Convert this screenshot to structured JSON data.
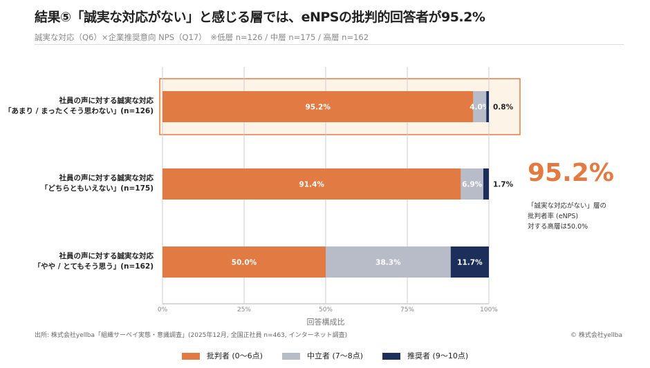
{
  "header": {
    "title": "結果⑤「誠実な対応がない」と感じる層では、eNPSの批判的回答者が95.2%",
    "subtitle": "誠実な対応（Q6）×企業推奨意向 NPS（Q17）　※低層 n=126 / 中層 n=175 / 高層 n=162"
  },
  "chart_data": {
    "type": "bar",
    "orientation": "horizontal",
    "stacked": true,
    "categories": [
      [
        "社員の声に対する誠実な対応",
        "「あまり / まったくそう思わない」(n=126)"
      ],
      [
        "社員の声に対する誠実な対応",
        "「どちらともいえない」(n=175)"
      ],
      [
        "社員の声に対する誠実な対応",
        "「やや / とてもそう思う」(n=162)"
      ]
    ],
    "series": [
      {
        "name": "批判者 (0〜6点)",
        "color": "#e27b43",
        "values": [
          95.2,
          91.4,
          50.0
        ],
        "labels": [
          "95.2%",
          "91.4%",
          "50.0%"
        ]
      },
      {
        "name": "中立者 (7〜8点)",
        "color": "#b8bcc8",
        "values": [
          4.0,
          6.9,
          38.3
        ],
        "labels": [
          "4.0%",
          "6.9%",
          "38.3%"
        ]
      },
      {
        "name": "推奨者 (9〜10点)",
        "color": "#1c2f5a",
        "values": [
          0.8,
          1.7,
          11.7
        ],
        "labels": [
          "0.8%",
          "1.7%",
          "11.7%"
        ]
      }
    ],
    "xlabel": "回答構成比",
    "xlim": [
      0,
      100
    ],
    "xticks": [
      "0%",
      "25%",
      "50%",
      "75%",
      "100%"
    ],
    "grid": true,
    "highlighted_category": 0,
    "highlight_color": "#e27b43",
    "legend_position": "bottom"
  },
  "kpi": {
    "value": "95.2%",
    "note": [
      "「誠実な対応がない」層の",
      "批判者率 (eNPS)",
      "対する高層は50.0%"
    ]
  },
  "footer": {
    "source": "出所: 株式会社yellba「組織サーベイ実態・意識調査」(2025年12月, 全国正社員 n=463, インターネット調査)",
    "copyright": "© 株式会社yellba"
  }
}
